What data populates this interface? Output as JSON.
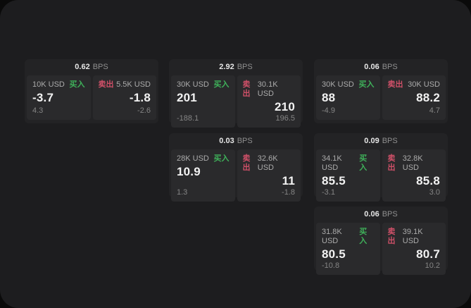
{
  "labels": {
    "bps_suffix": "BPS",
    "buy": "买入",
    "sell": "卖出"
  },
  "colors": {
    "bg": "#0a0a0a",
    "panel": "#1d1d1f",
    "card": "#232325",
    "tile": "#2a2a2c",
    "text_bright": "#f2f2f2",
    "text_header": "#e6e6e6",
    "text_label": "#ababab",
    "text_sub": "#858585",
    "text_suffix": "#8f8f8f",
    "buy_green": "#3fb15a",
    "sell_red": "#cf5068"
  },
  "cards": [
    {
      "bps": "0.62",
      "grid": {
        "row": 0,
        "col": 0
      },
      "buy": {
        "amount": "10K USD",
        "value": "-3.7",
        "sub": "4.3"
      },
      "sell": {
        "amount": "5.5K USD",
        "value": "-1.8",
        "sub": "-2.6"
      }
    },
    {
      "bps": "2.92",
      "grid": {
        "row": 0,
        "col": 1
      },
      "buy": {
        "amount": "30K USD",
        "value": "201",
        "sub": "-188.1"
      },
      "sell": {
        "amount": "30.1K USD",
        "value": "210",
        "sub": "196.5"
      }
    },
    {
      "bps": "0.06",
      "grid": {
        "row": 0,
        "col": 2
      },
      "buy": {
        "amount": "30K USD",
        "value": "88",
        "sub": "-4.9"
      },
      "sell": {
        "amount": "30K USD",
        "value": "88.2",
        "sub": "4.7"
      }
    },
    {
      "bps": "0.03",
      "grid": {
        "row": 1,
        "col": 1
      },
      "buy": {
        "amount": "28K USD",
        "value": "10.9",
        "sub": "1.3"
      },
      "sell": {
        "amount": "32.6K USD",
        "value": "11",
        "sub": "-1.8"
      }
    },
    {
      "bps": "0.09",
      "grid": {
        "row": 1,
        "col": 2
      },
      "buy": {
        "amount": "34.1K USD",
        "value": "85.5",
        "sub": "-3.1"
      },
      "sell": {
        "amount": "32.8K USD",
        "value": "85.8",
        "sub": "3.0"
      }
    },
    {
      "bps": "0.06",
      "grid": {
        "row": 2,
        "col": 2
      },
      "buy": {
        "amount": "31.8K USD",
        "value": "80.5",
        "sub": "-10.8"
      },
      "sell": {
        "amount": "39.1K USD",
        "value": "80.7",
        "sub": "10.2"
      }
    }
  ]
}
